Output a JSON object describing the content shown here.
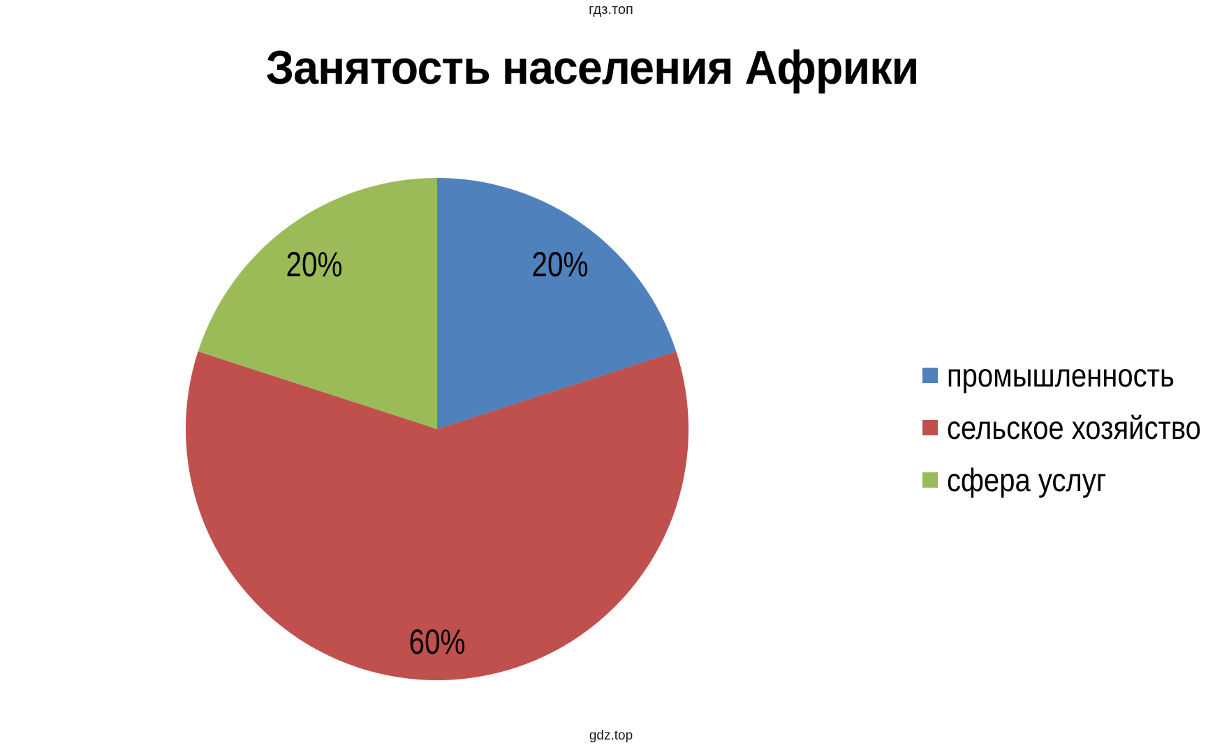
{
  "header": {
    "watermark": "гдз.топ"
  },
  "footer": {
    "watermark": "gdz.top"
  },
  "chart_data": {
    "type": "pie",
    "title": "Занятость населения Африки",
    "slices": [
      {
        "label": "промышленность",
        "value": 20,
        "color": "#4F81BD"
      },
      {
        "label": "сельское хозяйство",
        "value": 60,
        "color": "#C0504D"
      },
      {
        "label": "сфера услуг",
        "value": 20,
        "color": "#9BBB59"
      }
    ],
    "value_label_format": "percent",
    "legend_position": "right",
    "start_angle_deg": 0,
    "direction": "clockwise"
  }
}
